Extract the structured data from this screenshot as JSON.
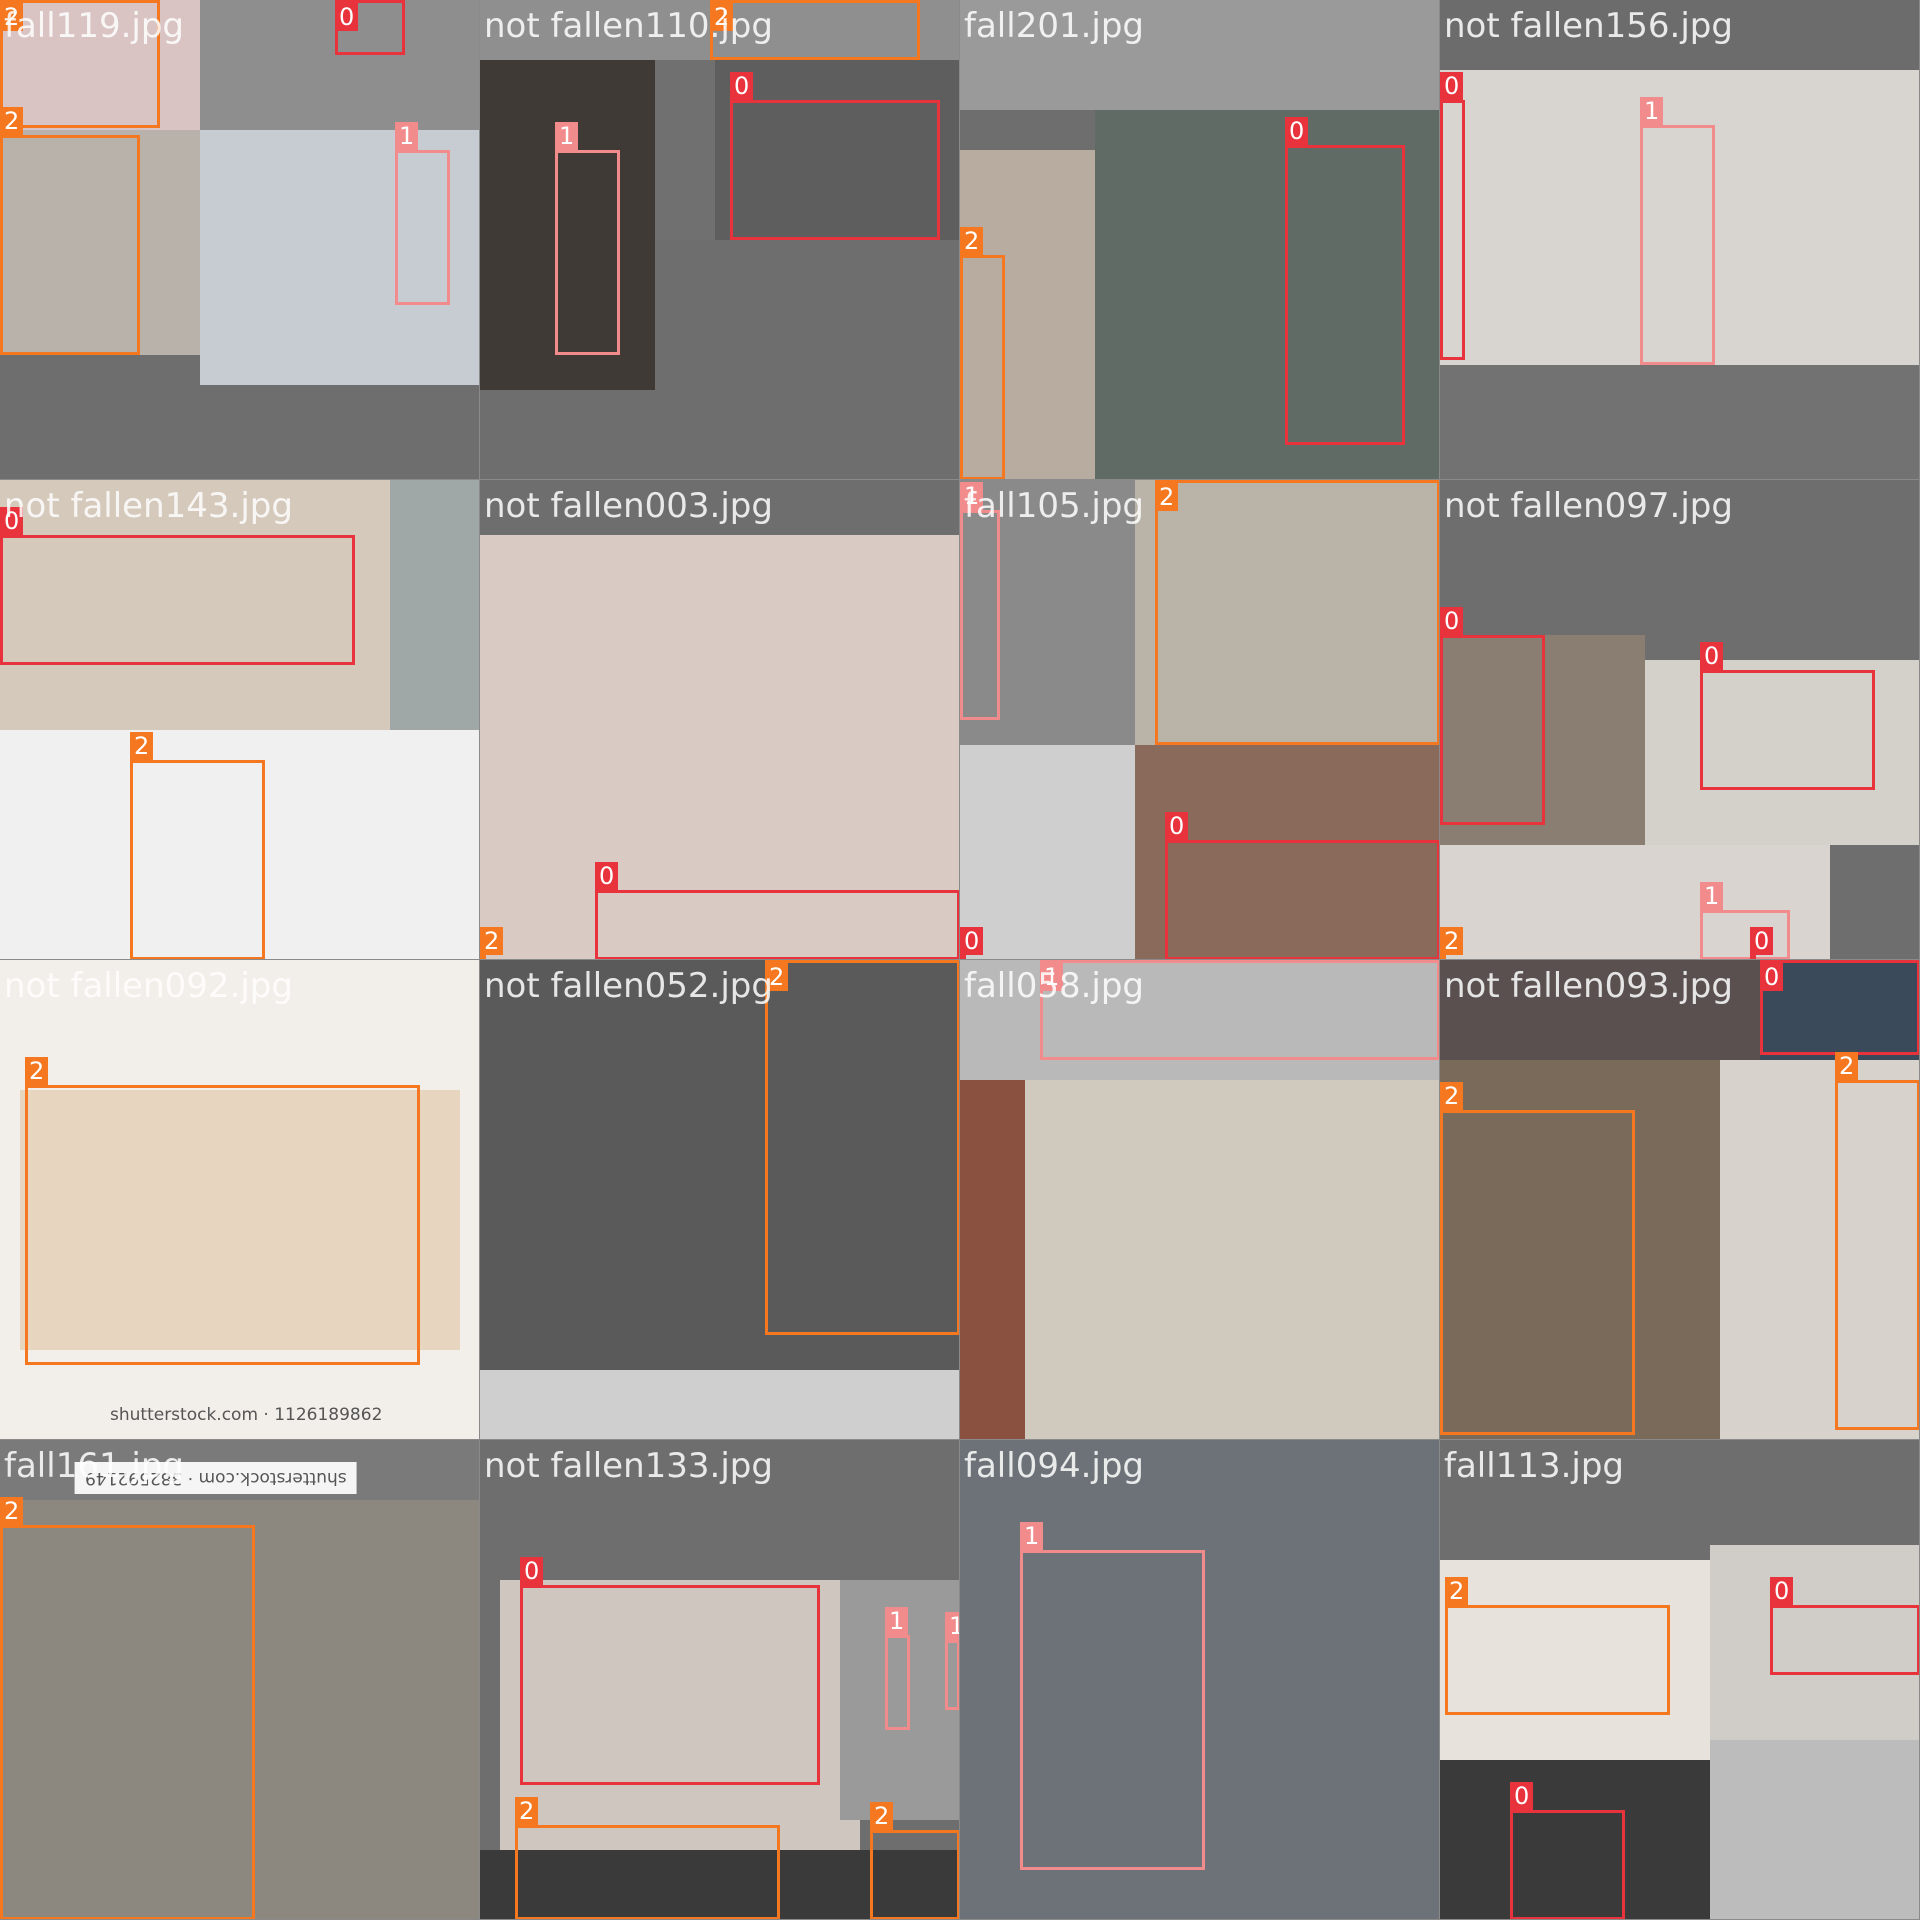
{
  "class_colors": {
    "0": "#e8323c",
    "1": "#f28c8c",
    "2": "#f5771f"
  },
  "watermarks": [
    "shutterstock.com · 1126189862",
    "shutterstock.com · 382592149"
  ],
  "tiles": [
    {
      "filename": "fall119.jpg",
      "labels": [
        "2",
        "0",
        "2",
        "1"
      ]
    },
    {
      "filename": "not fallen110.jpg",
      "labels": [
        "2",
        "0",
        "1"
      ]
    },
    {
      "filename": "fall201.jpg",
      "labels": [
        "0",
        "2"
      ]
    },
    {
      "filename": "not fallen156.jpg",
      "labels": [
        "0",
        "1"
      ]
    },
    {
      "filename": "not fallen143.jpg",
      "labels": [
        "0",
        "2"
      ]
    },
    {
      "filename": "not fallen003.jpg",
      "labels": [
        "0",
        "2"
      ]
    },
    {
      "filename": "fall105.jpg",
      "labels": [
        "1",
        "2",
        "0",
        "0"
      ]
    },
    {
      "filename": "not fallen097.jpg",
      "labels": [
        "0",
        "0",
        "1",
        "2",
        "0"
      ]
    },
    {
      "filename": "not fallen092.jpg",
      "labels": [
        "2"
      ]
    },
    {
      "filename": "not fallen052.jpg",
      "labels": [
        "2"
      ]
    },
    {
      "filename": "fall058.jpg",
      "labels": [
        "1"
      ]
    },
    {
      "filename": "not fallen093.jpg",
      "labels": [
        "0",
        "2",
        "2"
      ]
    },
    {
      "filename": "fall161.jpg",
      "labels": [
        "2"
      ]
    },
    {
      "filename": "not fallen133.jpg",
      "labels": [
        "0",
        "1",
        "1",
        "2",
        "2"
      ]
    },
    {
      "filename": "fall094.jpg",
      "labels": [
        "1"
      ]
    },
    {
      "filename": "fall113.jpg",
      "labels": [
        "2",
        "0",
        "0"
      ]
    }
  ]
}
